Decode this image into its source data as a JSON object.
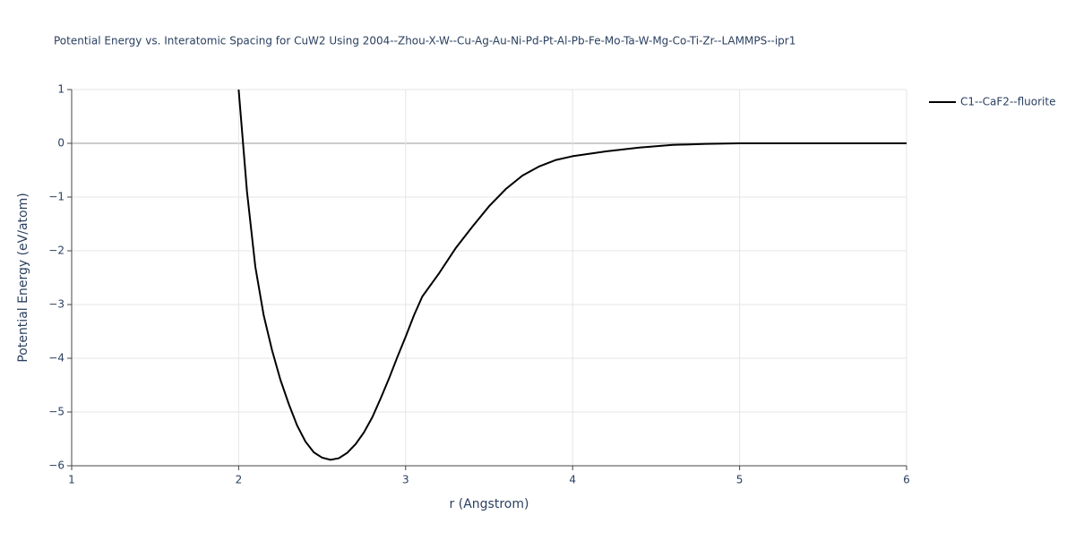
{
  "chart_data": {
    "type": "line",
    "title": "Potential Energy vs. Interatomic Spacing for CuW2 Using 2004--Zhou-X-W--Cu-Ag-Au-Ni-Pd-Pt-Al-Pb-Fe-Mo-Ta-W-Mg-Co-Ti-Zr--LAMMPS--ipr1",
    "xlabel": "r (Angstrom)",
    "ylabel": "Potential Energy (eV/atom)",
    "x": [
      2.0,
      2.05,
      2.1,
      2.15,
      2.2,
      2.25,
      2.3,
      2.35,
      2.4,
      2.45,
      2.5,
      2.55,
      2.6,
      2.65,
      2.7,
      2.75,
      2.8,
      2.85,
      2.9,
      2.95,
      3.0,
      3.05,
      3.1,
      3.2,
      3.3,
      3.4,
      3.5,
      3.6,
      3.7,
      3.8,
      3.9,
      4.0,
      4.2,
      4.4,
      4.6,
      4.8,
      5.0,
      6.0
    ],
    "series": [
      {
        "name": "C1--CaF2--fluorite",
        "color": "#000000",
        "values": [
          1.0,
          -0.9,
          -2.3,
          -3.2,
          -3.85,
          -4.4,
          -4.85,
          -5.25,
          -5.55,
          -5.75,
          -5.85,
          -5.89,
          -5.86,
          -5.76,
          -5.6,
          -5.38,
          -5.1,
          -4.75,
          -4.38,
          -3.98,
          -3.6,
          -3.2,
          -2.85,
          -2.42,
          -1.95,
          -1.55,
          -1.17,
          -0.85,
          -0.6,
          -0.43,
          -0.31,
          -0.24,
          -0.15,
          -0.08,
          -0.03,
          -0.01,
          0,
          0
        ]
      }
    ],
    "xlim": [
      1,
      6
    ],
    "ylim": [
      -6,
      1
    ],
    "xticks": [
      1,
      2,
      3,
      4,
      5,
      6
    ],
    "yticks": [
      {
        "value": -6,
        "label": "−6"
      },
      {
        "value": -5,
        "label": "−5"
      },
      {
        "value": -4,
        "label": "−4"
      },
      {
        "value": -3,
        "label": "−3"
      },
      {
        "value": -2,
        "label": "−2"
      },
      {
        "value": -1,
        "label": "−1"
      },
      0,
      1
    ],
    "grid": true,
    "legend": "top-right"
  }
}
